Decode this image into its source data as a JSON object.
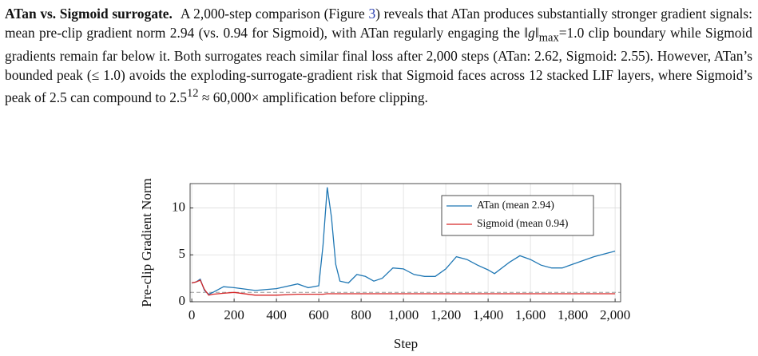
{
  "paragraph": {
    "heading": "ATan vs. Sigmoid surrogate.",
    "text_1": "A 2,000-step comparison (Figure ",
    "figure_ref": "3",
    "text_2": ") reveals that ATan produces substantially stronger gradient signals: mean pre-clip gradient norm 2.94 (vs. 0.94 for Sigmoid), with ATan regularly engaging the ‖",
    "norm_var": "g",
    "text_3": "‖",
    "norm_sub": "max",
    "text_4": "=1.0 clip boundary while Sigmoid gradients remain far below it. Both surrogates reach similar final loss after 2,000 steps (ATan: 2.62, Sigmoid: 2.55). However, ATan’s bounded peak (≤ 1.0) avoids the exploding-surrogate-gradient risk that Sigmoid faces across 12 stacked LIF layers, where Sigmoid’s peak of 2.5 can compound to 2.5",
    "exponent": "12",
    "text_5": " ≈ 60,000× amplification before clipping."
  },
  "chart_data": {
    "type": "line",
    "x_label": "Step",
    "y_label": "Pre-clip Gradient Norm",
    "x": [
      0,
      20,
      40,
      60,
      80,
      100,
      150,
      200,
      300,
      400,
      500,
      550,
      600,
      620,
      640,
      660,
      680,
      700,
      740,
      780,
      820,
      860,
      900,
      950,
      1000,
      1050,
      1100,
      1150,
      1200,
      1250,
      1300,
      1350,
      1400,
      1430,
      1500,
      1550,
      1600,
      1650,
      1700,
      1750,
      1800,
      1900,
      2000
    ],
    "series": [
      {
        "name": "ATan (mean 2.94)",
        "color": "#1f77b4",
        "values": [
          2.0,
          2.1,
          2.4,
          1.2,
          0.8,
          1.0,
          1.6,
          1.5,
          1.2,
          1.4,
          1.9,
          1.5,
          1.7,
          6.0,
          12.2,
          9.0,
          4.0,
          2.2,
          2.0,
          2.9,
          2.7,
          2.2,
          2.5,
          3.6,
          3.5,
          2.9,
          2.7,
          2.7,
          3.5,
          4.8,
          4.5,
          3.9,
          3.4,
          3.0,
          4.2,
          4.9,
          4.5,
          3.9,
          3.6,
          3.6,
          4.0,
          4.8,
          5.4
        ]
      },
      {
        "name": "Sigmoid (mean 0.94)",
        "color": "#d62728",
        "values": [
          2.0,
          2.1,
          2.3,
          1.3,
          0.7,
          0.8,
          0.9,
          1.0,
          0.7,
          0.7,
          0.8,
          0.8,
          0.8,
          0.8,
          0.85,
          0.85,
          0.85,
          0.85,
          0.85,
          0.85,
          0.85,
          0.85,
          0.85,
          0.85,
          0.85,
          0.85,
          0.85,
          0.85,
          0.85,
          0.85,
          0.85,
          0.85,
          0.85,
          0.85,
          0.85,
          0.85,
          0.85,
          0.85,
          0.85,
          0.85,
          0.85,
          0.85,
          0.85
        ]
      }
    ],
    "hline": 1.0,
    "hline_color": "#999999",
    "xlim": [
      -8,
      2026
    ],
    "ylim": [
      0,
      12.6
    ],
    "xticks": [
      0,
      200,
      400,
      600,
      800,
      {
        "value": 1000,
        "label": "1,000"
      },
      {
        "value": 1200,
        "label": "1,200"
      },
      {
        "value": 1400,
        "label": "1,400"
      },
      {
        "value": 1600,
        "label": "1,600"
      },
      {
        "value": 1800,
        "label": "1,800"
      },
      {
        "value": 2000,
        "label": "2,000"
      }
    ],
    "yticks": [
      0,
      5,
      10
    ],
    "grid": true,
    "legend": "top-right"
  }
}
